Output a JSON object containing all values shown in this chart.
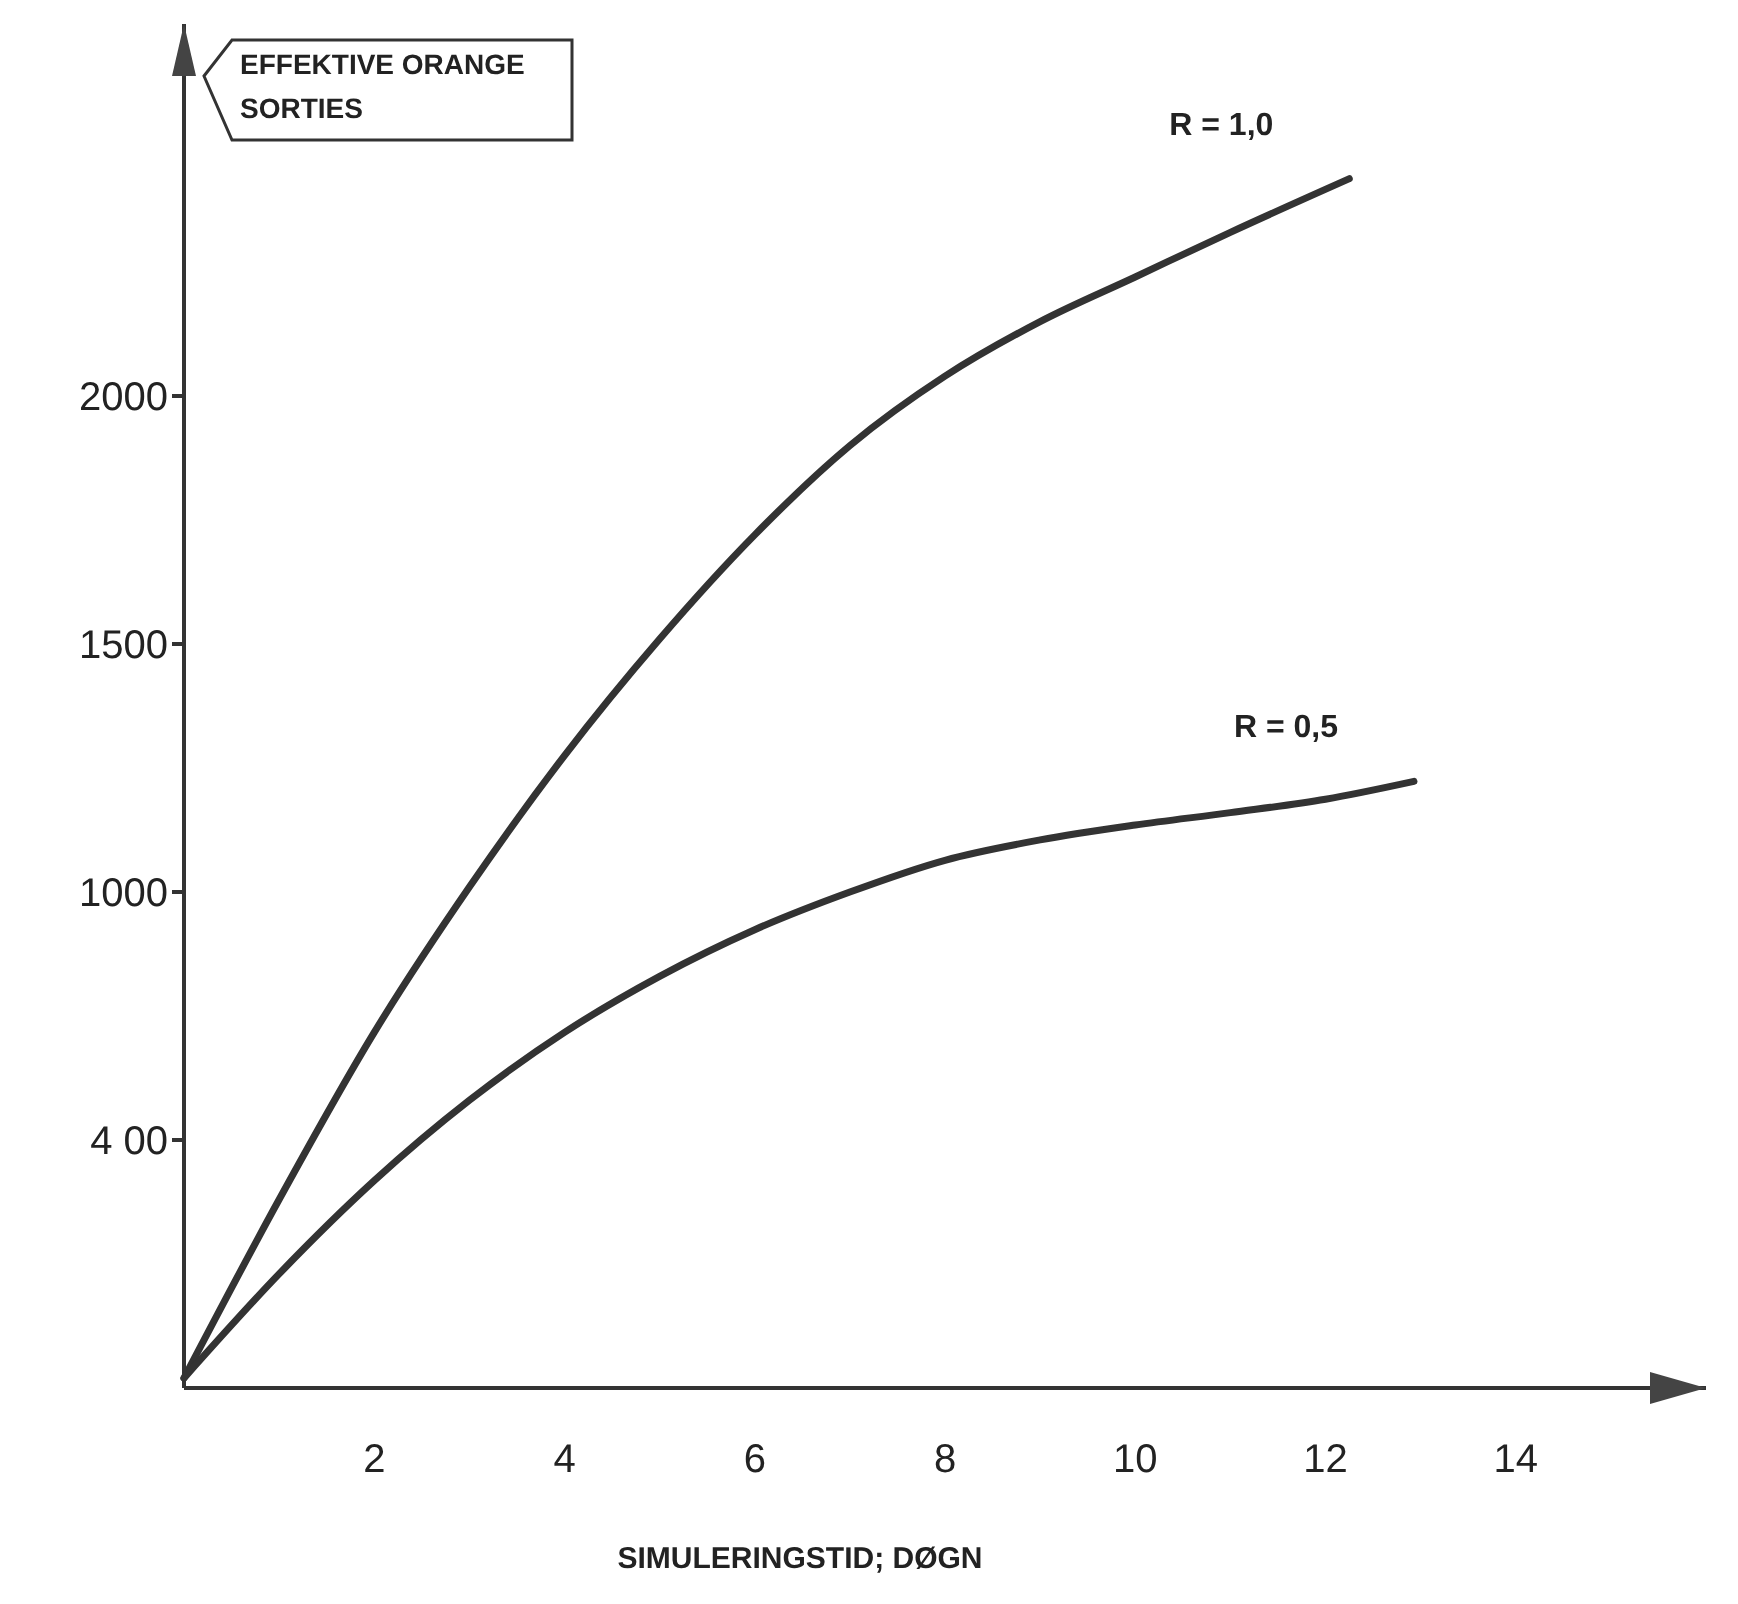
{
  "chart_data": {
    "type": "line",
    "ylabel": "EFFEKTIVE ORANGE SORTIES",
    "xlabel": "SIMULERINGSTID; DØGN",
    "xlim": [
      0,
      16
    ],
    "ylim": [
      0,
      2750
    ],
    "xticks": [
      2,
      4,
      6,
      8,
      10,
      12,
      14
    ],
    "yticks": [
      {
        "value": 500,
        "label": "4 00"
      },
      1000,
      1500,
      2000
    ],
    "grid": false,
    "marker": "none",
    "line_style": "solid",
    "series": [
      {
        "name": "R = 1,0",
        "color": "#333333",
        "x": [
          0,
          1,
          2,
          3,
          4,
          5,
          6,
          7,
          8,
          9,
          10,
          11,
          12.25
        ],
        "values": [
          20,
          380,
          717,
          1010,
          1275,
          1510,
          1720,
          1900,
          2040,
          2150,
          2240,
          2330,
          2438
        ]
      },
      {
        "name": "R = 0,5",
        "color": "#333333",
        "x": [
          0,
          1,
          2,
          3,
          4,
          5,
          6,
          7,
          8,
          9,
          10,
          11,
          12,
          12.93
        ],
        "values": [
          20,
          230,
          418,
          580,
          717,
          830,
          924,
          1000,
          1064,
          1105,
          1135,
          1160,
          1187,
          1223
        ]
      }
    ]
  }
}
